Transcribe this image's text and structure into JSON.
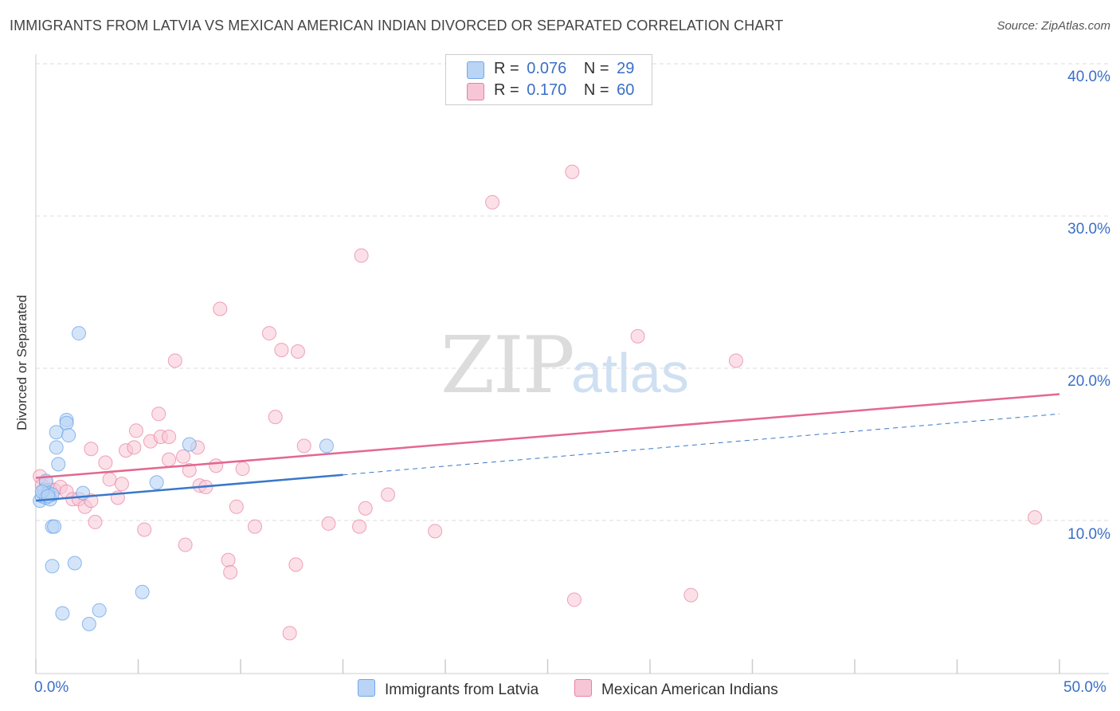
{
  "title": "IMMIGRANTS FROM LATVIA VS MEXICAN AMERICAN INDIAN DIVORCED OR SEPARATED CORRELATION CHART",
  "source": "Source: ZipAtlas.com",
  "watermark": {
    "zip": "ZIP",
    "atlas": "atlas"
  },
  "legend": {
    "row1": {
      "r_label": "R =",
      "r_value": "0.076",
      "n_label": "N =",
      "n_value": "29"
    },
    "row2": {
      "r_label": "R =",
      "r_value": "0.170",
      "n_label": "N =",
      "n_value": "60"
    }
  },
  "colors": {
    "blue": "#6fa8e8",
    "blue_fill": "#b9d4f5",
    "pink": "#e87ea0",
    "pink_fill": "#f7c6d6",
    "blue_line": "#3a78c9",
    "pink_line": "#e3688f"
  },
  "chart_data": {
    "type": "scatter",
    "xlabel": "",
    "ylabel": "Divorced or Separated",
    "xlim": [
      0,
      50
    ],
    "ylim": [
      0,
      42
    ],
    "x_tick_labels": [
      "0.0%",
      "50.0%"
    ],
    "y_ticks": [
      10,
      20,
      30,
      40
    ],
    "y_tick_labels": [
      "10.0%",
      "20.0%",
      "30.0%",
      "40.0%"
    ],
    "grid": true,
    "legend_position": "top-center",
    "series": [
      {
        "name": "Immigrants from Latvia",
        "color": "#6fa8e8",
        "points": [
          [
            0.2,
            11.3
          ],
          [
            0.3,
            11.6
          ],
          [
            0.4,
            12.0
          ],
          [
            0.5,
            11.5
          ],
          [
            0.5,
            12.6
          ],
          [
            0.6,
            11.8
          ],
          [
            0.7,
            11.4
          ],
          [
            0.8,
            11.7
          ],
          [
            0.8,
            9.6
          ],
          [
            0.9,
            9.6
          ],
          [
            0.8,
            7.0
          ],
          [
            1.0,
            14.8
          ],
          [
            1.0,
            15.8
          ],
          [
            1.1,
            13.7
          ],
          [
            1.3,
            3.9
          ],
          [
            1.5,
            16.6
          ],
          [
            1.5,
            16.4
          ],
          [
            1.6,
            15.6
          ],
          [
            1.9,
            7.2
          ],
          [
            2.1,
            22.3
          ],
          [
            2.3,
            11.8
          ],
          [
            2.6,
            3.2
          ],
          [
            3.1,
            4.1
          ],
          [
            5.2,
            5.3
          ],
          [
            5.9,
            12.5
          ],
          [
            7.5,
            15.0
          ],
          [
            14.2,
            14.9
          ],
          [
            0.3,
            11.9
          ],
          [
            0.6,
            11.6
          ]
        ],
        "trend": {
          "x": [
            0,
            15
          ],
          "y": [
            11.3,
            13.0
          ],
          "dashed_x": [
            15,
            50
          ],
          "dashed_y": [
            13.0,
            17.0
          ]
        }
      },
      {
        "name": "Mexican American Indians",
        "color": "#e87ea0",
        "points": [
          [
            0.2,
            12.9
          ],
          [
            0.3,
            12.3
          ],
          [
            0.5,
            12.5
          ],
          [
            0.7,
            12.0
          ],
          [
            0.9,
            12.0
          ],
          [
            1.2,
            12.2
          ],
          [
            1.5,
            11.9
          ],
          [
            1.8,
            11.4
          ],
          [
            2.1,
            11.4
          ],
          [
            2.4,
            10.9
          ],
          [
            2.7,
            11.3
          ],
          [
            2.9,
            9.9
          ],
          [
            2.7,
            14.7
          ],
          [
            3.4,
            13.8
          ],
          [
            3.6,
            12.7
          ],
          [
            4.0,
            11.5
          ],
          [
            4.2,
            12.4
          ],
          [
            4.4,
            14.6
          ],
          [
            4.8,
            14.8
          ],
          [
            4.9,
            15.9
          ],
          [
            5.3,
            9.4
          ],
          [
            5.6,
            15.2
          ],
          [
            6.1,
            15.5
          ],
          [
            6.0,
            17.0
          ],
          [
            6.5,
            14.0
          ],
          [
            6.5,
            15.5
          ],
          [
            6.8,
            20.5
          ],
          [
            7.2,
            14.2
          ],
          [
            7.3,
            8.4
          ],
          [
            7.5,
            13.3
          ],
          [
            7.9,
            14.8
          ],
          [
            8.0,
            12.3
          ],
          [
            8.3,
            12.2
          ],
          [
            8.8,
            13.6
          ],
          [
            9.0,
            23.9
          ],
          [
            9.4,
            7.4
          ],
          [
            9.5,
            6.6
          ],
          [
            9.8,
            10.9
          ],
          [
            10.1,
            13.4
          ],
          [
            10.7,
            9.6
          ],
          [
            11.4,
            22.3
          ],
          [
            11.7,
            16.8
          ],
          [
            12.0,
            21.2
          ],
          [
            12.4,
            2.6
          ],
          [
            12.7,
            7.1
          ],
          [
            12.8,
            21.1
          ],
          [
            13.1,
            14.9
          ],
          [
            14.3,
            9.8
          ],
          [
            15.8,
            9.6
          ],
          [
            15.9,
            27.4
          ],
          [
            16.1,
            10.8
          ],
          [
            17.2,
            11.7
          ],
          [
            19.5,
            9.3
          ],
          [
            22.3,
            30.9
          ],
          [
            26.2,
            32.9
          ],
          [
            26.3,
            4.8
          ],
          [
            29.4,
            22.1
          ],
          [
            32.0,
            5.1
          ],
          [
            34.2,
            20.5
          ],
          [
            48.8,
            10.2
          ]
        ],
        "trend": {
          "x": [
            0,
            50
          ],
          "y": [
            12.8,
            18.3
          ]
        }
      }
    ]
  },
  "bottom_legend": {
    "item1": "Immigrants from Latvia",
    "item2": "Mexican American Indians"
  }
}
